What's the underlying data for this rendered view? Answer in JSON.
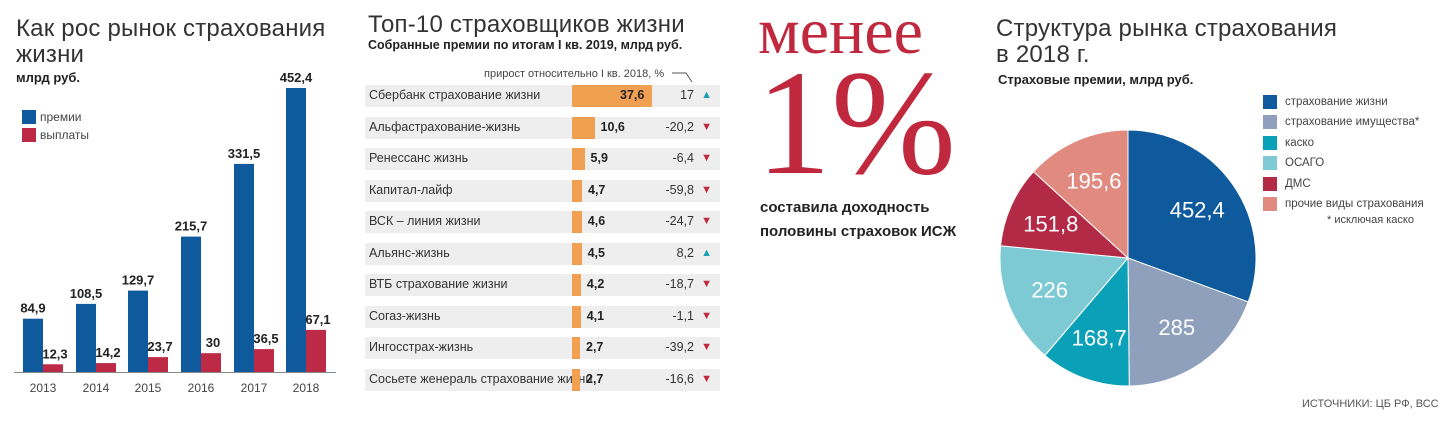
{
  "panel1": {
    "title": "Как рос рынок страхования жизни",
    "unit": "млрд руб.",
    "legend": [
      {
        "label": "премии",
        "color": "#0f5a9c"
      },
      {
        "label": "выплаты",
        "color": "#bc2a45"
      }
    ]
  },
  "panel2": {
    "title": "Топ-10 страховщиков жизни",
    "subtitle": "Собранные премии по итогам I кв. 2019, млрд руб.",
    "growth_header": "прирост относительно I кв. 2018, %",
    "rows": [
      {
        "name": "Сбербанк страхование жизни",
        "value": "37,6",
        "growth": "17",
        "dir": "up"
      },
      {
        "name": "Альфастрахование-жизнь",
        "value": "10,6",
        "growth": "-20,2",
        "dir": "down"
      },
      {
        "name": "Ренессанс жизнь",
        "value": "5,9",
        "growth": "-6,4",
        "dir": "down"
      },
      {
        "name": "Капитал-лайф",
        "value": "4,7",
        "growth": "-59,8",
        "dir": "down"
      },
      {
        "name": "ВСК – линия жизни",
        "value": "4,6",
        "growth": "-24,7",
        "dir": "down"
      },
      {
        "name": "Альянс-жизнь",
        "value": "4,5",
        "growth": "8,2",
        "dir": "up"
      },
      {
        "name": "ВТБ страхование жизни",
        "value": "4,2",
        "growth": "-18,7",
        "dir": "down"
      },
      {
        "name": "Согаз-жизнь",
        "value": "4,1",
        "growth": "-1,1",
        "dir": "down"
      },
      {
        "name": "Ингосстрах-жизнь",
        "value": "2,7",
        "growth": "-39,2",
        "dir": "down"
      },
      {
        "name": "Сосьете женераль страхование жизни",
        "value": "2,7",
        "growth": "-16,6",
        "dir": "down"
      }
    ],
    "arrow_up": "🡅",
    "arrow_down": "🡇",
    "colors": {
      "bar": "#f0a050",
      "up": "#1aa0b8",
      "down": "#c0283e"
    }
  },
  "panel3": {
    "big1": "менее",
    "big2": "1%",
    "caption1": "составила доходность",
    "caption2": "половины страховок ИСЖ"
  },
  "panel4": {
    "title1": "Структура рынка страхования",
    "title2": "в 2018 г.",
    "subtitle": "Страховые премии, млрд руб.",
    "footnote": "* исключая каско",
    "sources": "ИСТОЧНИКИ: ЦБ РФ, ВСС"
  },
  "chart_data": [
    {
      "type": "bar",
      "categories": [
        "2013",
        "2014",
        "2015",
        "2016",
        "2017",
        "2018"
      ],
      "series": [
        {
          "name": "премии",
          "values": [
            84.9,
            108.5,
            129.7,
            215.7,
            331.5,
            452.4
          ],
          "labels": [
            "84,9",
            "108,5",
            "129,7",
            "215,7",
            "331,5",
            "452,4"
          ],
          "color": "#0f5a9c"
        },
        {
          "name": "выплаты",
          "values": [
            12.3,
            14.2,
            23.7,
            30,
            36.5,
            67.1
          ],
          "labels": [
            "12,3",
            "14,2",
            "23,7",
            "30",
            "36,5",
            "67,1"
          ],
          "color": "#bc2a45"
        }
      ],
      "title": "Как рос рынок страхования жизни",
      "ylabel": "млрд руб.",
      "ylim": [
        0,
        452.4
      ]
    },
    {
      "type": "bar",
      "orientation": "horizontal",
      "categories": [
        "Сбербанк страхование жизни",
        "Альфастрахование-жизнь",
        "Ренессанс жизнь",
        "Капитал-лайф",
        "ВСК – линия жизни",
        "Альянс-жизнь",
        "ВТБ страхование жизни",
        "Согаз-жизнь",
        "Ингосстрах-жизнь",
        "Сосьете женераль страхование жизни"
      ],
      "values": [
        37.6,
        10.6,
        5.9,
        4.7,
        4.6,
        4.5,
        4.2,
        4.1,
        2.7,
        2.7
      ],
      "growth": [
        17,
        -20.2,
        -6.4,
        -59.8,
        -24.7,
        8.2,
        -18.7,
        -1.1,
        -39.2,
        -16.6
      ],
      "title": "Топ-10 страховщиков жизни"
    },
    {
      "type": "pie",
      "title": "Структура рынка страхования в 2018 г.",
      "slices": [
        {
          "label": "страхование жизни",
          "value": 452.4,
          "text": "452,4",
          "color": "#0f5a9c"
        },
        {
          "label": "страхование имущества*",
          "value": 285,
          "text": "285",
          "color": "#8ea0bc"
        },
        {
          "label": "каско",
          "value": 168.7,
          "text": "168,7",
          "color": "#0aa0b8"
        },
        {
          "label": "ОСАГО",
          "value": 226,
          "text": "226",
          "color": "#7dcad4"
        },
        {
          "label": "ДМС",
          "value": 151.8,
          "text": "151,8",
          "color": "#b22a45"
        },
        {
          "label": "прочие виды страхования",
          "value": 195.6,
          "text": "195,6",
          "color": "#e08a80"
        }
      ]
    }
  ]
}
